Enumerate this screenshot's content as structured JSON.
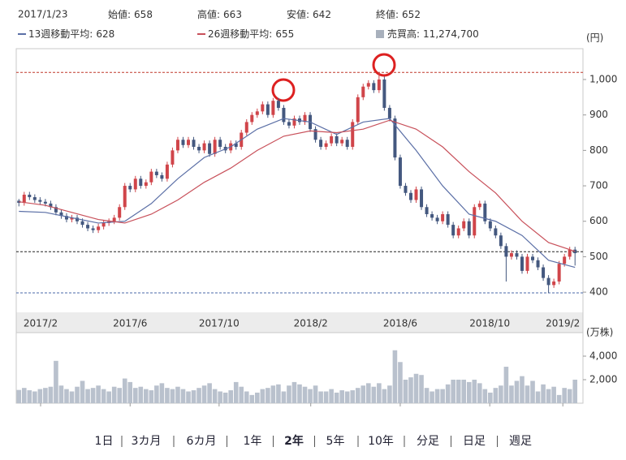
{
  "header": {
    "date": "2017/1/23",
    "open_label": "始値:",
    "high_label": "高値:",
    "low_label": "安値:",
    "close_label": "終値:",
    "volume_label": "売買高:",
    "volume_text": "11,274,700"
  },
  "chart_data": [
    {
      "type": "candlestick",
      "unit": "(円)",
      "xlim": [
        -0.5,
        106.5
      ],
      "xticks": [
        {
          "value": 4.1,
          "label": "2017/2"
        },
        {
          "value": 21,
          "label": "2017/6"
        },
        {
          "value": 37.8,
          "label": "2017/10"
        },
        {
          "value": 55.1,
          "label": "2018/2"
        },
        {
          "value": 72,
          "label": "2018/6"
        },
        {
          "value": 88.9,
          "label": "2018/10"
        },
        {
          "value": 102.7,
          "label": "2019/2"
        }
      ],
      "ylim": [
        343,
        1087
      ],
      "yticks": [
        400,
        500,
        600,
        700,
        800,
        900,
        {
          "value": 1000,
          "label": "1,000"
        }
      ],
      "up_color": "#d0454a",
      "down_color": "#44587f",
      "open": [
        658,
        652,
        675,
        668,
        660,
        655,
        650,
        640,
        625,
        615,
        605,
        610,
        600,
        590,
        580,
        575,
        585,
        595,
        600,
        610,
        640,
        700,
        690,
        720,
        700,
        710,
        740,
        730,
        720,
        760,
        800,
        830,
        815,
        830,
        810,
        800,
        820,
        790,
        830,
        810,
        800,
        820,
        810,
        850,
        880,
        900,
        910,
        930,
        900,
        940,
        920,
        880,
        870,
        890,
        880,
        900,
        860,
        830,
        810,
        820,
        840,
        820,
        830,
        810,
        880,
        950,
        980,
        990,
        970,
        1000,
        920,
        890,
        780,
        700,
        680,
        660,
        690,
        640,
        620,
        610,
        600,
        620,
        590,
        560,
        580,
        600,
        560,
        640,
        650,
        600,
        580,
        560,
        530,
        500,
        510,
        500,
        460,
        500,
        490,
        470,
        440,
        420,
        430,
        480,
        500,
        520
      ],
      "high": [
        663,
        683,
        683,
        676,
        668,
        663,
        658,
        648,
        633,
        623,
        618,
        618,
        608,
        598,
        588,
        593,
        603,
        608,
        618,
        648,
        708,
        708,
        728,
        728,
        718,
        748,
        748,
        738,
        768,
        808,
        838,
        838,
        838,
        838,
        818,
        828,
        828,
        838,
        838,
        818,
        828,
        828,
        858,
        888,
        908,
        918,
        938,
        938,
        948,
        948,
        928,
        888,
        898,
        898,
        908,
        908,
        868,
        838,
        828,
        848,
        848,
        838,
        838,
        888,
        958,
        988,
        998,
        998,
        1020,
        1008,
        928,
        898,
        788,
        708,
        688,
        698,
        698,
        648,
        628,
        618,
        628,
        628,
        598,
        588,
        608,
        608,
        648,
        658,
        658,
        608,
        588,
        568,
        538,
        518,
        518,
        508,
        508,
        508,
        498,
        478,
        448,
        438,
        488,
        508,
        528,
        528
      ],
      "low": [
        642,
        644,
        660,
        652,
        647,
        642,
        632,
        617,
        607,
        597,
        597,
        592,
        582,
        572,
        567,
        567,
        577,
        587,
        592,
        602,
        632,
        682,
        682,
        692,
        692,
        702,
        722,
        712,
        712,
        752,
        792,
        807,
        807,
        802,
        792,
        792,
        782,
        782,
        802,
        792,
        792,
        802,
        802,
        842,
        872,
        892,
        902,
        892,
        892,
        912,
        872,
        862,
        862,
        872,
        872,
        852,
        822,
        802,
        802,
        812,
        812,
        812,
        802,
        802,
        872,
        942,
        972,
        962,
        962,
        912,
        882,
        772,
        692,
        672,
        652,
        652,
        632,
        612,
        602,
        592,
        592,
        582,
        552,
        552,
        572,
        552,
        552,
        632,
        592,
        572,
        552,
        522,
        430,
        492,
        492,
        452,
        452,
        482,
        462,
        432,
        398,
        412,
        422,
        472,
        492,
        475
      ],
      "close": [
        652,
        675,
        668,
        660,
        655,
        650,
        640,
        625,
        615,
        605,
        610,
        600,
        590,
        580,
        575,
        585,
        595,
        600,
        610,
        640,
        700,
        690,
        720,
        700,
        710,
        740,
        730,
        720,
        760,
        800,
        830,
        815,
        830,
        810,
        800,
        820,
        790,
        830,
        810,
        800,
        820,
        810,
        850,
        880,
        900,
        910,
        930,
        900,
        940,
        920,
        880,
        870,
        890,
        880,
        900,
        860,
        830,
        810,
        820,
        840,
        820,
        830,
        810,
        880,
        950,
        980,
        990,
        970,
        1000,
        920,
        890,
        780,
        700,
        680,
        660,
        690,
        640,
        620,
        610,
        600,
        620,
        590,
        560,
        580,
        600,
        560,
        640,
        650,
        600,
        580,
        560,
        530,
        500,
        510,
        500,
        460,
        500,
        490,
        470,
        440,
        420,
        430,
        480,
        500,
        520,
        510
      ],
      "series": [
        {
          "name": "13週移動平均:",
          "color": "#5b6fa6",
          "x": [
            0,
            5,
            10,
            15,
            20,
            25,
            30,
            35,
            40,
            45,
            50,
            55,
            60,
            65,
            70,
            75,
            80,
            85,
            90,
            95,
            100,
            105
          ],
          "values": [
            628,
            625,
            610,
            595,
            600,
            650,
            720,
            780,
            810,
            860,
            890,
            880,
            845,
            880,
            890,
            800,
            700,
            620,
            600,
            560,
            490,
            470
          ]
        },
        {
          "name": "26週移動平均:",
          "color": "#c8505a",
          "x": [
            0,
            5,
            10,
            15,
            20,
            25,
            30,
            35,
            40,
            45,
            50,
            55,
            60,
            65,
            70,
            75,
            80,
            85,
            90,
            95,
            100,
            105
          ],
          "values": [
            655,
            645,
            625,
            605,
            595,
            620,
            660,
            710,
            750,
            800,
            840,
            855,
            850,
            860,
            885,
            860,
            810,
            740,
            680,
            600,
            540,
            515
          ]
        }
      ],
      "hlines": [
        {
          "value": 1020,
          "color": "#c0392b"
        },
        {
          "value": 514,
          "color": "#222222"
        },
        {
          "value": 398,
          "color": "#4a6aa8"
        }
      ]
    },
    {
      "type": "bar",
      "unit": "(万株)",
      "color": "#b9c1cd",
      "ylim": [
        0,
        6000
      ],
      "yticks": [
        {
          "value": 2000,
          "label": "2,000"
        },
        {
          "value": 4000,
          "label": "4,000"
        }
      ],
      "values": [
        1127.47,
        1300,
        1100,
        1000,
        1200,
        1300,
        1400,
        3600,
        1500,
        1200,
        1000,
        1400,
        1900,
        1200,
        1300,
        1500,
        1200,
        1000,
        1400,
        1300,
        2100,
        1800,
        1300,
        1400,
        1200,
        1100,
        1500,
        1700,
        1300,
        1200,
        1400,
        1200,
        1000,
        1100,
        1300,
        1500,
        1700,
        1200,
        1000,
        900,
        1100,
        1800,
        1400,
        1000,
        700,
        900,
        1200,
        1300,
        1500,
        1600,
        1000,
        1500,
        1800,
        1600,
        1400,
        1200,
        1500,
        1000,
        1000,
        1200,
        900,
        1100,
        1000,
        1100,
        1300,
        1500,
        1700,
        1400,
        1700,
        1200,
        1500,
        4500,
        3500,
        2000,
        2200,
        2500,
        2400,
        1300,
        1000,
        1200,
        1200,
        1600,
        2000,
        2000,
        2000,
        1800,
        2000,
        1700,
        1200,
        900,
        1300,
        1500,
        3100,
        1500,
        1900,
        2300,
        1500,
        1900,
        1000,
        1600,
        1200,
        1400,
        700,
        1300,
        1200,
        2000
      ]
    }
  ],
  "tabs": [
    "1日",
    "3カ月",
    "6カ月",
    "1年",
    "2年",
    "5年",
    "10年",
    "分足",
    "日足",
    "週足"
  ],
  "active_tab": 4
}
